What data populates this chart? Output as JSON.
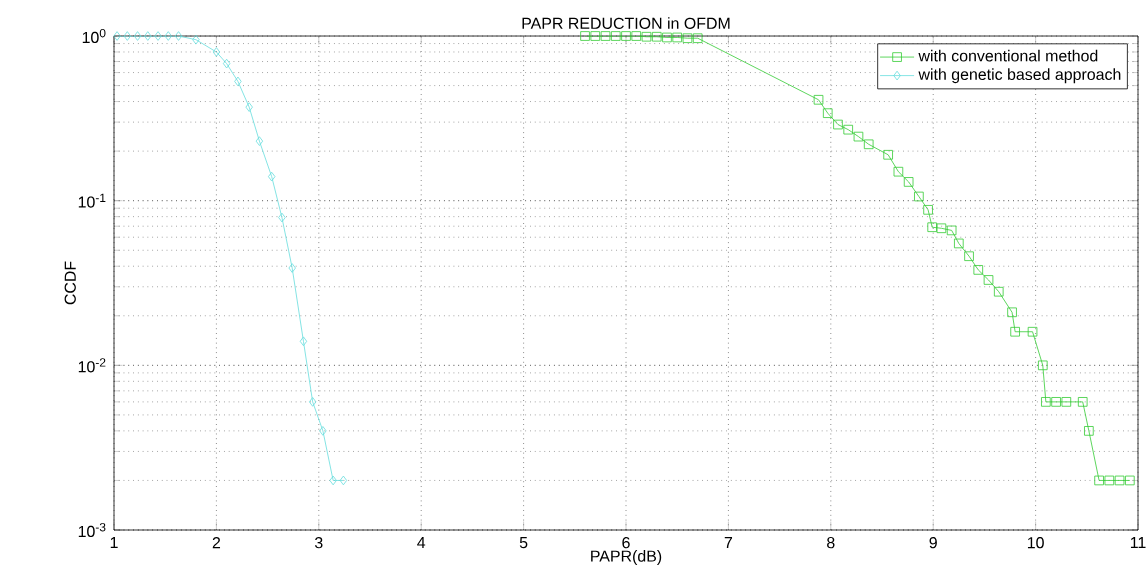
{
  "chart_data": {
    "type": "line",
    "title": "PAPR REDUCTION in OFDM",
    "xlabel": "PAPR(dB)",
    "ylabel": "CCDF",
    "log": "y",
    "grid": true,
    "legend": "top right",
    "line_style": "solid",
    "xlim": [
      1,
      11
    ],
    "xticks": [
      1,
      2,
      3,
      4,
      5,
      6,
      7,
      8,
      9,
      10,
      11
    ],
    "ylim": [
      0.001,
      1
    ],
    "yticks": [
      {
        "value": 0.001,
        "label": "10$^{-3}$"
      },
      {
        "value": 0.01,
        "label": "10$^{-2}$"
      },
      {
        "value": 0.1,
        "label": "10$^{-1}$"
      },
      {
        "value": 1,
        "label": "10$^{0}$"
      }
    ],
    "series": [
      {
        "name": "with conventional method",
        "color": "#33cc33",
        "marker": "square",
        "x": [
          5.6,
          5.7,
          5.8,
          5.9,
          6.0,
          6.1,
          6.2,
          6.3,
          6.4,
          6.5,
          6.6,
          6.7,
          7.88,
          7.97,
          8.07,
          8.17,
          8.27,
          8.37,
          8.56,
          8.66,
          8.76,
          8.86,
          8.95,
          8.99,
          9.08,
          9.18,
          9.25,
          9.35,
          9.44,
          9.54,
          9.64,
          9.77,
          9.8,
          9.97,
          10.07,
          10.1,
          10.2,
          10.3,
          10.46,
          10.52,
          10.62,
          10.72,
          10.82,
          10.92
        ],
        "values": [
          1,
          1,
          1,
          1,
          1,
          1,
          0.99,
          0.99,
          0.98,
          0.98,
          0.97,
          0.97,
          0.41,
          0.34,
          0.29,
          0.27,
          0.245,
          0.22,
          0.19,
          0.15,
          0.13,
          0.106,
          0.088,
          0.069,
          0.068,
          0.066,
          0.055,
          0.046,
          0.038,
          0.033,
          0.028,
          0.021,
          0.016,
          0.016,
          0.01,
          0.006,
          0.006,
          0.006,
          0.006,
          0.004,
          0.002,
          0.002,
          0.002,
          0.002
        ]
      },
      {
        "name": "with genetic based approach",
        "color": "#66dddd",
        "marker": "diamond",
        "x": [
          1.03,
          1.13,
          1.23,
          1.33,
          1.43,
          1.53,
          1.63,
          1.8,
          2.0,
          2.1,
          2.21,
          2.32,
          2.42,
          2.54,
          2.64,
          2.74,
          2.85,
          2.94,
          3.04,
          3.14,
          3.24
        ],
        "values": [
          1,
          1,
          1,
          1,
          1,
          1,
          1,
          0.95,
          0.8,
          0.68,
          0.53,
          0.37,
          0.23,
          0.14,
          0.079,
          0.039,
          0.014,
          0.006,
          0.004,
          0.002,
          0.002
        ]
      }
    ]
  }
}
